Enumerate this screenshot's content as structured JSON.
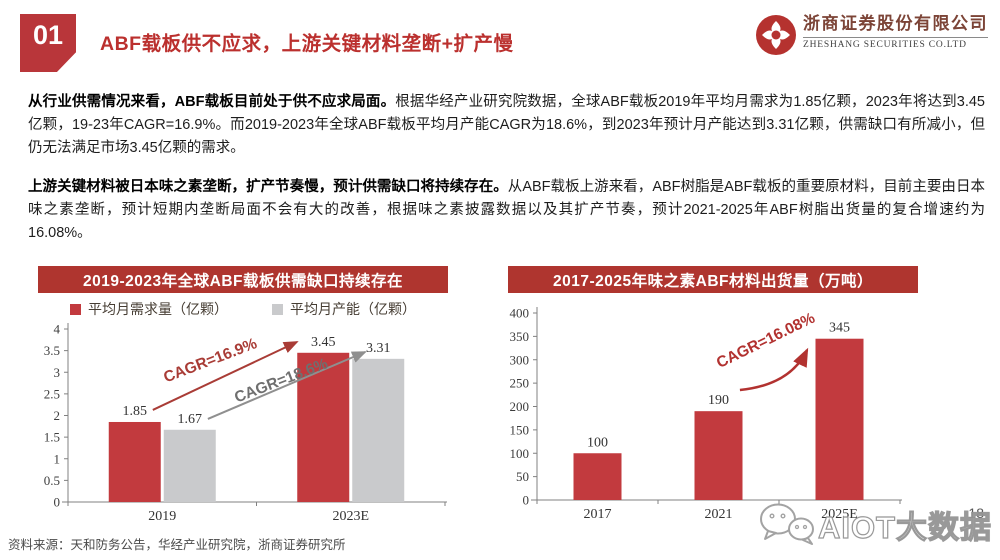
{
  "header": {
    "badge": "01",
    "title": "ABF载板供不应求，上游关键材料垄断+扩产慢",
    "logo": {
      "company_cn": "浙商证券股份有限公司",
      "company_en": "ZHESHANG SECURITIES CO.LTD"
    }
  },
  "paragraphs": [
    {
      "lead": "从行业供需情况来看，ABF载板目前处于供不应求局面。",
      "rest": "根据华经产业研究院数据，全球ABF载板2019年平均月需求为1.85亿颗，2023年将达到3.45亿颗，19-23年CAGR=16.9%。而2019-2023年全球ABF载板平均月产能CAGR为18.6%，到2023年预计月产能达到3.31亿颗，供需缺口有所减小，但仍无法满足市场3.45亿颗的需求。"
    },
    {
      "lead": "上游关键材料被日本味之素垄断，扩产节奏慢，预计供需缺口将持续存在。",
      "rest": "从ABF载板上游来看，ABF树脂是ABF载板的重要原材料，目前主要由日本味之素垄断，预计短期内垄断局面不会有大的改善，根据味之素披露数据以及其扩产节奏，预计2021-2025年ABF树脂出货量的复合增速约为16.08%。"
    }
  ],
  "chart_data": [
    {
      "type": "bar",
      "title": "2019-2023年全球ABF载板供需缺口持续存在",
      "categories": [
        "2019",
        "2023E"
      ],
      "series": [
        {
          "name": "平均月需求量（亿颗）",
          "values": [
            1.85,
            3.45
          ],
          "color": "#c23a3e"
        },
        {
          "name": "平均月产能（亿颗）",
          "values": [
            1.67,
            3.31
          ],
          "color": "#c9cacc"
        }
      ],
      "ylim": [
        0,
        4
      ],
      "ytick_step": 0.5,
      "grid": false,
      "legend_position": "top",
      "annotations": [
        {
          "type": "arrow",
          "x1f": 0.225,
          "y1f": 0.532,
          "x2f": 0.607,
          "y2f": 0.925,
          "color": "#a93c36",
          "width": 2
        },
        {
          "type": "arrow",
          "x1f": 0.371,
          "y1f": 0.48,
          "x2f": 0.788,
          "y2f": 0.867,
          "color": "#8f8f8f",
          "width": 2
        },
        {
          "type": "label",
          "xf": 0.382,
          "yf": 0.792,
          "rot": -21,
          "text": "CAGR=16.9%",
          "color": "#a93c36",
          "size": 15.5
        },
        {
          "type": "label",
          "xf": 0.57,
          "yf": 0.676,
          "rot": -21,
          "text": "CAGR=18.6%",
          "color": "#6f6f6f",
          "size": 15.5
        }
      ]
    },
    {
      "type": "bar",
      "title": "2017-2025年味之素ABF材料出货量（万吨）",
      "categories": [
        "2017",
        "2021",
        "2025E"
      ],
      "series": [
        {
          "name": "出货量（万吨）",
          "values": [
            100,
            190,
            345
          ],
          "color": "#c23a3e"
        }
      ],
      "ylim": [
        0,
        400
      ],
      "ytick_step": 50,
      "grid": false,
      "legend_position": "none",
      "annotations": [
        {
          "type": "arrow",
          "x1f": 0.559,
          "y1f": 0.588,
          "cxf": 0.697,
          "cyf": 0.615,
          "x2f": 0.744,
          "y2f": 0.802,
          "color": "#b23230",
          "width": 2.5
        },
        {
          "type": "label",
          "xf": 0.636,
          "yf": 0.83,
          "rot": -26,
          "text": "CAGR=16.08%",
          "color": "#b23230",
          "size": 15.5
        }
      ]
    }
  ],
  "footer": {
    "source": "资料来源：天和防务公告，华经产业研究院，浙商证券研究所",
    "page_number": "18"
  },
  "watermark": {
    "text": "AIOT大数据"
  },
  "colors": {
    "brand_red": "#af352f",
    "title_red": "#bb302e",
    "bar_red": "#c23a3e",
    "bar_gray": "#c9cacc"
  }
}
